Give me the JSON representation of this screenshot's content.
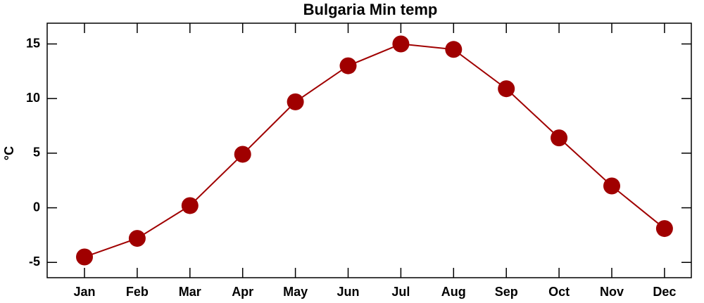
{
  "chart_data": {
    "type": "line",
    "title": "Bulgaria Min temp",
    "y_label": "°C",
    "categories": [
      "Jan",
      "Feb",
      "Mar",
      "Apr",
      "May",
      "Jun",
      "Jul",
      "Aug",
      "Sep",
      "Oct",
      "Nov",
      "Dec"
    ],
    "series": [
      {
        "name": "Min temp",
        "color": "#a00000",
        "values": [
          -4.5,
          -2.8,
          0.2,
          4.9,
          9.7,
          13.0,
          15.0,
          14.5,
          10.9,
          6.4,
          2.0,
          -1.9
        ]
      }
    ],
    "ylim": [
      -6.4,
      16.9
    ],
    "yticks": [
      -5,
      0,
      5,
      10,
      15
    ]
  }
}
